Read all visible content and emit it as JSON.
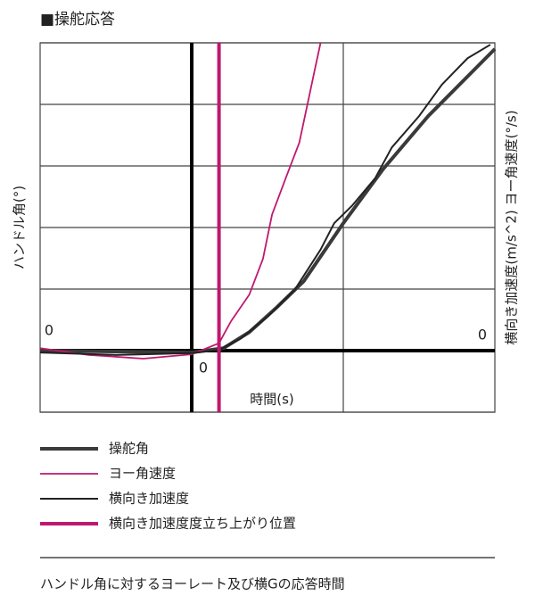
{
  "chart_data": {
    "type": "line",
    "title": "■操舵応答",
    "x_label": "時間(s)",
    "y_label": "ハンドル角(°)",
    "y2_label": "横向き加速度(m/s^2) ヨー角速度(°/s)",
    "xlim": [
      -1,
      2
    ],
    "ylim": [
      -1,
      5
    ],
    "y2lim": [
      -1,
      5
    ],
    "xticks": [
      0
    ],
    "yticks": [
      0
    ],
    "y2ticks": [
      0
    ],
    "xgrid": [
      1
    ],
    "ygrid": [
      -1,
      1,
      2,
      3,
      4,
      5
    ],
    "series": [
      {
        "name": "操舵角",
        "color": "#3a3a3a",
        "x": [
          -1,
          0,
          0.21,
          0.38,
          0.56,
          0.74,
          1.0,
          1.26,
          1.56,
          2.0
        ],
        "values": [
          0,
          -0.03,
          0.04,
          0.3,
          0.7,
          1.13,
          2.07,
          2.94,
          3.81,
          4.9
        ]
      },
      {
        "name": "ヨー角速度",
        "color": "#c0186e",
        "axis": "y2",
        "x": [
          -1,
          -0.68,
          -0.32,
          0,
          0.18,
          0.26,
          0.38,
          0.47,
          0.53,
          0.62,
          0.71,
          0.76,
          0.81,
          0.85
        ],
        "values": [
          0.04,
          -0.07,
          -0.13,
          -0.06,
          0.12,
          0.48,
          0.91,
          1.49,
          2.21,
          2.8,
          3.38,
          3.96,
          4.54,
          5.0
        ]
      },
      {
        "name": "横向き加速度",
        "color": "#222222",
        "axis": "y2",
        "x": [
          -1,
          -0.5,
          0,
          0.18,
          0.32,
          0.5,
          0.68,
          0.85,
          0.94,
          1.06,
          1.21,
          1.32,
          1.5,
          1.65,
          1.82,
          1.97
        ],
        "values": [
          -0.03,
          -0.07,
          -0.04,
          0.01,
          0.19,
          0.55,
          0.99,
          1.64,
          2.07,
          2.36,
          2.8,
          3.3,
          3.81,
          4.32,
          4.75,
          4.97
        ]
      }
    ],
    "markers": [
      {
        "name": "横向き加速度度立ち上がり位置",
        "color": "#c0186e",
        "x": 0.18
      }
    ],
    "caption": "ハンドル角に対するヨーレート及び横Gの応答時間"
  }
}
